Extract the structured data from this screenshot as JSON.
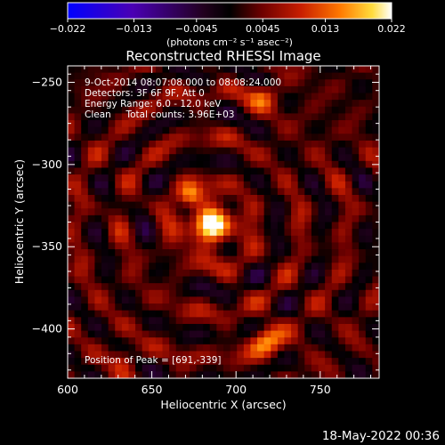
{
  "chart_data": {
    "type": "heatmap",
    "title": "Reconstructed RHESSI Image",
    "xlabel": "Heliocentric X (arcsec)",
    "ylabel": "Heliocentric Y (arcsec)",
    "xlim": [
      600,
      785
    ],
    "ylim": [
      -430,
      -240
    ],
    "x_ticks": [
      600,
      650,
      700,
      750
    ],
    "y_ticks": [
      -250,
      -300,
      -350,
      -400
    ],
    "y_tick_labels": [
      "−250",
      "−300",
      "−350",
      "−400"
    ],
    "colorbar": {
      "range": [
        -0.022,
        0.022
      ],
      "ticks": [
        -0.022,
        -0.013,
        -0.0045,
        0.0045,
        0.013,
        0.022
      ],
      "tick_labels": [
        "−0.022",
        "−0.013",
        "−0.0045",
        "0.0045",
        "0.013",
        "0.022"
      ],
      "unit_label": "(photons cm⁻² s⁻¹ asec⁻²)"
    },
    "annotations": [
      "9-Oct-2014 08:07:08.000 to 08:08:24.000",
      "Detectors: 3F 6F 9F, Att 0",
      "Energy Range: 6.0 - 12.0 keV",
      "Clean     Total counts: 3.96E+03"
    ],
    "peak_label": "Position of Peak = [691,-339]",
    "sources": [
      {
        "x": 685,
        "y": -337,
        "peak": 0.022,
        "sigma": 9
      },
      {
        "x": 673,
        "y": -319,
        "peak": 0.011,
        "sigma": 5
      },
      {
        "x": 718,
        "y": -407,
        "peak": 0.012,
        "sigma": 7
      },
      {
        "x": 716,
        "y": -258,
        "peak": 0.009,
        "sigma": 6
      },
      {
        "x": 633,
        "y": -418,
        "peak": 0.008,
        "sigma": 5
      }
    ]
  },
  "footer_timestamp": "18-May-2022 00:36"
}
